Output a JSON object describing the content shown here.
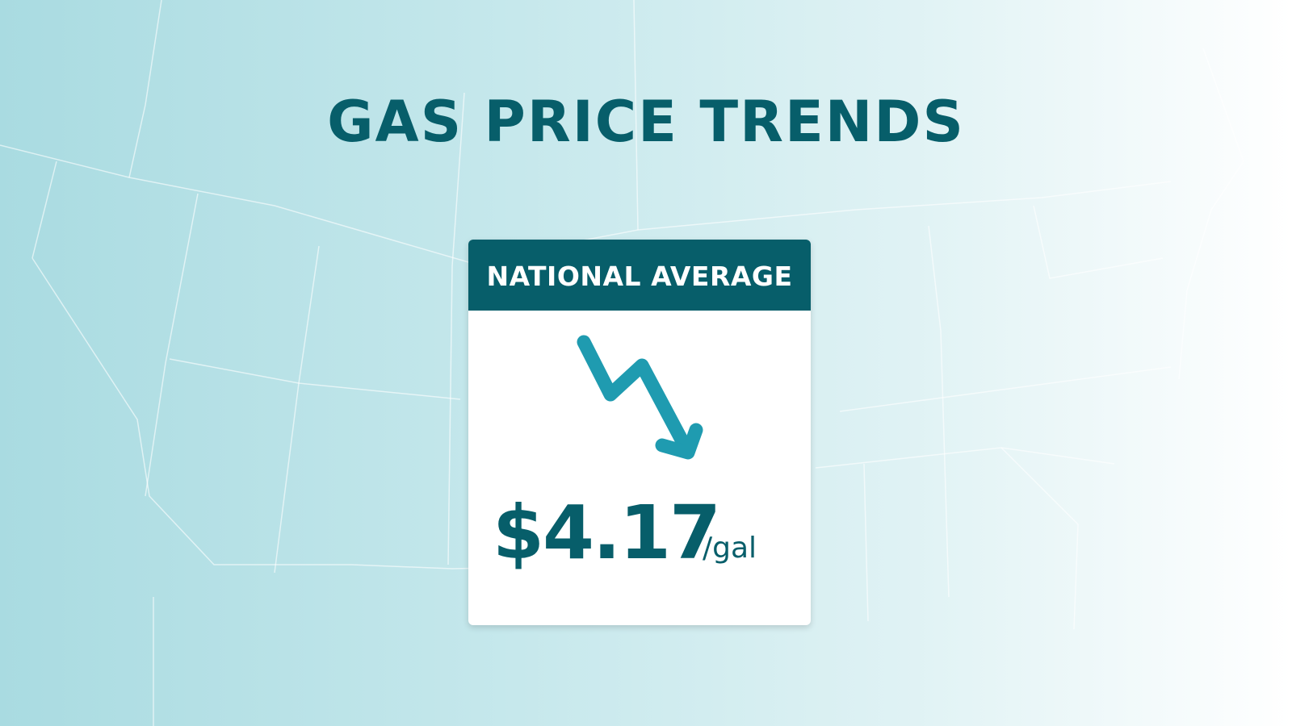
{
  "title": "GAS PRICE TRENDS",
  "card": {
    "header": "NATIONAL AVERAGE",
    "price": "$4.17",
    "unit": "/gal"
  }
}
